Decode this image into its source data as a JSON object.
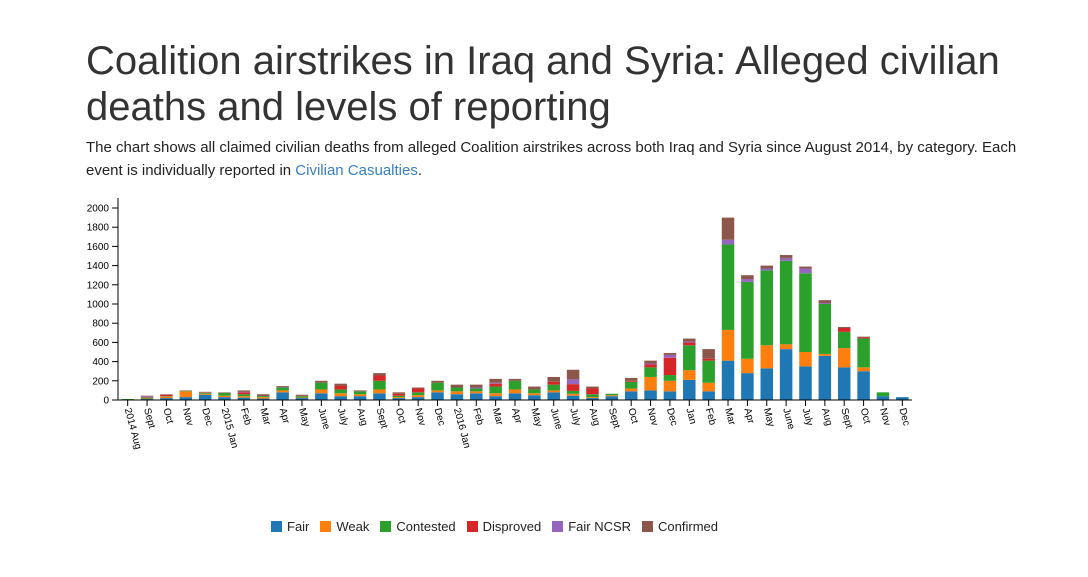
{
  "title": "Coalition airstrikes in Iraq and Syria: Alleged civilian deaths and levels of reporting",
  "description": {
    "text": "The chart shows all claimed civilian deaths from alleged Coalition airstrikes across both Iraq and Syria since August 2014, by category. Each event is individually reported in ",
    "link_text": "Civilian Casualties",
    "end": "."
  },
  "chart_data": {
    "type": "bar",
    "stacked": true,
    "title": "",
    "xlabel": "",
    "ylabel": "",
    "ylim": [
      0,
      2000
    ],
    "yticks": [
      0,
      200,
      400,
      600,
      800,
      1000,
      1200,
      1400,
      1600,
      1800,
      2000
    ],
    "grid": false,
    "legend_position": "bottom",
    "categories": [
      "2014 Aug",
      "Sept",
      "Oct",
      "Nov",
      "Dec",
      "2015 Jan",
      "Feb",
      "Mar",
      "Apr",
      "May",
      "June",
      "July",
      "Aug",
      "Sept",
      "Oct",
      "Nov",
      "Dec",
      "2016 Jan",
      "Feb",
      "Mar",
      "Apr",
      "May",
      "June",
      "July",
      "Aug",
      "Sept",
      "Oct",
      "Nov",
      "Dec",
      "Jan",
      "Feb",
      "Mar",
      "Apr",
      "May",
      "June",
      "July",
      "Aug",
      "Sept",
      "Oct",
      "Nov",
      "Dec"
    ],
    "series": [
      {
        "name": "Fair",
        "color": "#1f77b4",
        "values": [
          5,
          10,
          20,
          30,
          55,
          30,
          25,
          15,
          80,
          20,
          70,
          40,
          40,
          70,
          20,
          30,
          80,
          60,
          70,
          40,
          70,
          50,
          80,
          45,
          20,
          40,
          90,
          100,
          90,
          210,
          90,
          410,
          280,
          330,
          530,
          350,
          460,
          340,
          300,
          40,
          30
        ]
      },
      {
        "name": "Weak",
        "color": "#ff7f0e",
        "values": [
          0,
          5,
          15,
          60,
          10,
          15,
          15,
          15,
          20,
          5,
          40,
          30,
          20,
          40,
          10,
          20,
          20,
          30,
          20,
          30,
          40,
          20,
          20,
          20,
          10,
          10,
          30,
          140,
          110,
          100,
          90,
          320,
          150,
          240,
          50,
          150,
          20,
          200,
          40,
          0,
          0
        ]
      },
      {
        "name": "Contested",
        "color": "#2ca02c",
        "values": [
          5,
          10,
          5,
          5,
          10,
          30,
          20,
          10,
          30,
          15,
          70,
          40,
          30,
          90,
          15,
          30,
          80,
          40,
          30,
          70,
          90,
          40,
          60,
          30,
          30,
          15,
          70,
          100,
          60,
          260,
          230,
          890,
          800,
          780,
          870,
          820,
          520,
          170,
          300,
          40,
          0
        ]
      },
      {
        "name": "Disproved",
        "color": "#d62728",
        "values": [
          0,
          5,
          15,
          0,
          5,
          0,
          20,
          0,
          0,
          5,
          0,
          40,
          0,
          55,
          20,
          40,
          0,
          0,
          0,
          30,
          0,
          0,
          30,
          70,
          60,
          0,
          10,
          30,
          180,
          30,
          20,
          0,
          0,
          0,
          0,
          0,
          0,
          40,
          10,
          0,
          0
        ]
      },
      {
        "name": "Fair NCSR",
        "color": "#9467bd",
        "values": [
          0,
          10,
          0,
          0,
          0,
          0,
          5,
          0,
          5,
          0,
          0,
          0,
          0,
          0,
          0,
          0,
          0,
          0,
          10,
          10,
          0,
          0,
          0,
          50,
          0,
          0,
          0,
          10,
          30,
          10,
          0,
          50,
          30,
          20,
          30,
          50,
          10,
          0,
          0,
          0,
          0
        ]
      },
      {
        "name": "Confirmed",
        "color": "#8c564b",
        "values": [
          0,
          5,
          5,
          5,
          5,
          5,
          15,
          20,
          10,
          10,
          20,
          20,
          10,
          25,
          15,
          10,
          20,
          30,
          30,
          40,
          20,
          30,
          50,
          100,
          20,
          0,
          30,
          30,
          20,
          30,
          100,
          230,
          40,
          30,
          30,
          20,
          30,
          10,
          10,
          0,
          0
        ]
      }
    ]
  }
}
